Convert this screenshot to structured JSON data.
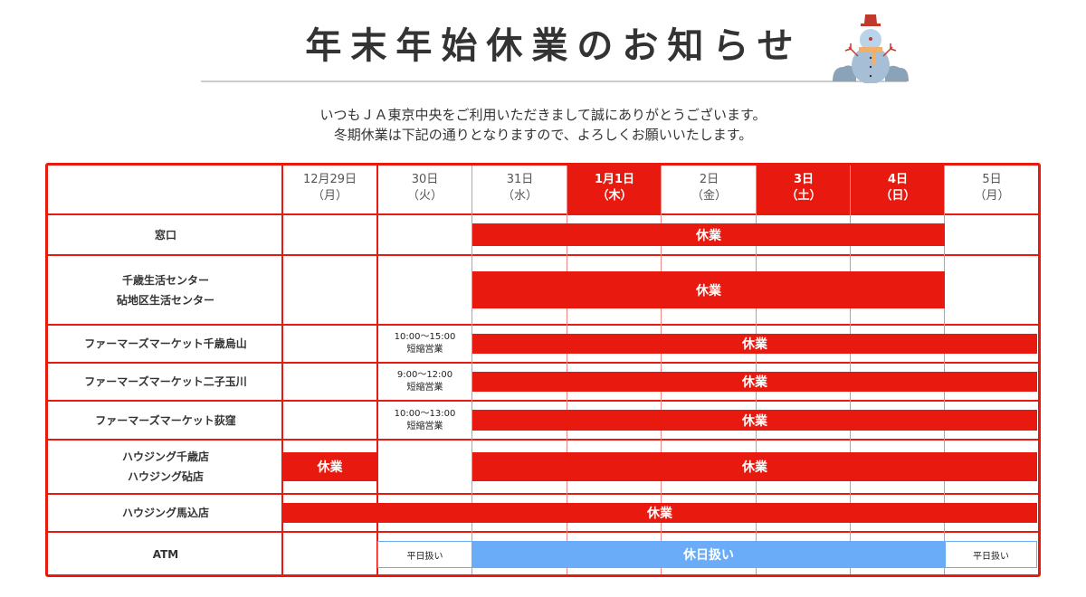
{
  "title": "年末年始休業のお知らせ",
  "intro": [
    "いつもＪＡ東京中央をご利用いただきまして誠にありがとうございます。",
    "冬期休業は下記の通りとなりますので、よろしくお願いいたします。"
  ],
  "colors": {
    "closed": "#e8190f",
    "holiday_atm": "#6aacf8"
  },
  "columns": [
    {
      "date": "12月29日",
      "day": "（月）",
      "holiday": false
    },
    {
      "date": "30日",
      "day": "（火）",
      "holiday": false
    },
    {
      "date": "31日",
      "day": "（水）",
      "holiday": false
    },
    {
      "date": "1月1日",
      "day": "（木）",
      "holiday": true
    },
    {
      "date": "2日",
      "day": "（金）",
      "holiday": false
    },
    {
      "date": "3日",
      "day": "（土）",
      "holiday": true
    },
    {
      "date": "4日",
      "day": "（日）",
      "holiday": true
    },
    {
      "date": "5日",
      "day": "（月）",
      "holiday": false
    }
  ],
  "rows": [
    {
      "lines": [
        "窓口"
      ],
      "bars": [
        {
          "label": "休業",
          "from": 2,
          "to": 6,
          "type": "closed"
        }
      ]
    },
    {
      "lines": [
        "千歳生活センター",
        "砧地区生活センター"
      ],
      "bars": [
        {
          "label": "休業",
          "from": 2,
          "to": 6,
          "type": "closed"
        }
      ]
    },
    {
      "lines": [
        "ファーマーズマーケット千歳烏山"
      ],
      "notes": [
        {
          "col": 1,
          "time": "10:00～15:00",
          "text": "短縮営業"
        }
      ],
      "bars": [
        {
          "label": "休業",
          "from": 2,
          "to": 7,
          "type": "closed"
        }
      ]
    },
    {
      "lines": [
        "ファーマーズマーケット二子玉川"
      ],
      "notes": [
        {
          "col": 1,
          "time": "9:00～12:00",
          "text": "短縮営業"
        }
      ],
      "bars": [
        {
          "label": "休業",
          "from": 2,
          "to": 7,
          "type": "closed"
        }
      ]
    },
    {
      "lines": [
        "ファーマーズマーケット荻窪"
      ],
      "notes": [
        {
          "col": 1,
          "time": "10:00～13:00",
          "text": "短縮営業"
        }
      ],
      "bars": [
        {
          "label": "休業",
          "from": 2,
          "to": 7,
          "type": "closed"
        }
      ]
    },
    {
      "lines": [
        "ハウジング千歳店",
        "ハウジング砧店"
      ],
      "bars": [
        {
          "label": "休業",
          "from": 0,
          "to": 0,
          "type": "closed"
        },
        {
          "label": "休業",
          "from": 2,
          "to": 7,
          "type": "closed"
        }
      ]
    },
    {
      "lines": [
        "ハウジング馬込店"
      ],
      "bars": [
        {
          "label": "休業",
          "from": 0,
          "to": 7,
          "type": "closed"
        }
      ]
    },
    {
      "lines": [
        "ATM"
      ],
      "bars": [
        {
          "label": "平日扱い",
          "from": 1,
          "to": 1,
          "type": "weekday"
        },
        {
          "label": "休日扱い",
          "from": 2,
          "to": 6,
          "type": "holiday"
        },
        {
          "label": "平日扱い",
          "from": 7,
          "to": 7,
          "type": "weekday"
        }
      ]
    }
  ]
}
